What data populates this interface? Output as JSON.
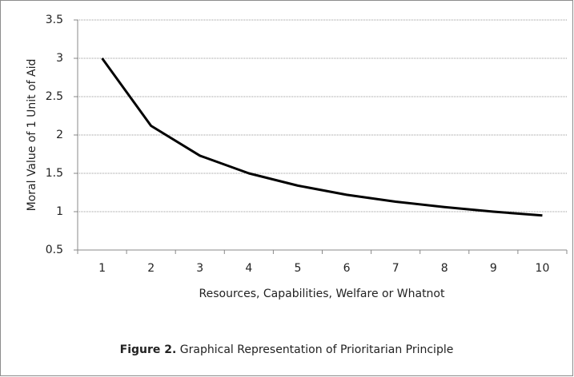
{
  "chart_data": {
    "type": "line",
    "x_label": "Resources, Capabilities, Welfare or Whatnot",
    "y_label": "Moral Value of 1 Unit of Aid",
    "caption": {
      "label": "Figure 2.",
      "text": "Graphical Representation of Prioritarian Principle"
    },
    "categories": [
      1,
      2,
      3,
      4,
      5,
      6,
      7,
      8,
      9,
      10
    ],
    "values": [
      3,
      2.12,
      1.73,
      1.5,
      1.34,
      1.22,
      1.13,
      1.06,
      1.0,
      0.95
    ],
    "color": "#000000",
    "ylim": [
      0.5,
      3.5
    ],
    "yticks": [
      0.5,
      1,
      1.5,
      2,
      2.5,
      3,
      3.5
    ],
    "grid": true
  }
}
